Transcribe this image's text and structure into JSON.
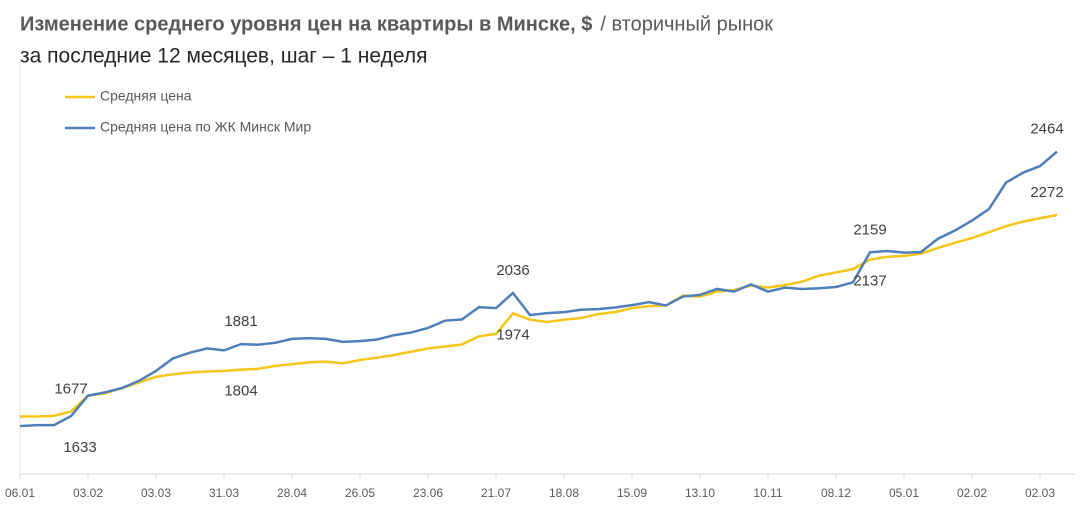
{
  "chart_data": {
    "type": "line",
    "title": "Изменение среднего уровня цен на квартиры в Минске, $",
    "title_suffix": "/ вторичный рынок",
    "subtitle": "за последние 12 месяцев, шаг – 1 неделя",
    "categories": [
      "06.01",
      null,
      null,
      null,
      "03.02",
      null,
      null,
      null,
      "03.03",
      null,
      null,
      null,
      "31.03",
      null,
      null,
      null,
      "28.04",
      null,
      null,
      null,
      "26.05",
      null,
      null,
      null,
      "23.06",
      null,
      null,
      null,
      "21.07",
      null,
      null,
      null,
      "18.08",
      null,
      null,
      null,
      "15.09",
      null,
      null,
      null,
      "13.10",
      null,
      null,
      null,
      "10.11",
      null,
      null,
      null,
      "08.12",
      null,
      null,
      null,
      "05.01",
      null,
      null,
      null,
      "02.02",
      null,
      null,
      null,
      "02.03",
      null
    ],
    "series": [
      {
        "name": "Средняя цена",
        "color": "#f5c518",
        "labels_at": [
          3,
          13,
          29,
          50,
          61
        ],
        "values": [
          1662,
          1662,
          1664,
          1677,
          1725,
          1732,
          1748,
          1765,
          1782,
          1790,
          1795,
          1798,
          1800,
          1804,
          1806,
          1815,
          1820,
          1826,
          1828,
          1823,
          1833,
          1840,
          1848,
          1858,
          1868,
          1874,
          1880,
          1905,
          1912,
          1974,
          1955,
          1948,
          1955,
          1960,
          1972,
          1978,
          1990,
          1996,
          1998,
          2028,
          2025,
          2040,
          2045,
          2058,
          2052,
          2060,
          2070,
          2088,
          2098,
          2108,
          2137,
          2145,
          2148,
          2155,
          2172,
          2188,
          2202,
          2220,
          2238,
          2252,
          2262,
          2272
        ]
      },
      {
        "name": "Средняя цена по ЖК Минск Мир",
        "color": "#4f7fba",
        "labels_at": [
          0,
          13,
          29,
          50,
          61
        ],
        "values": [
          1633,
          1636,
          1636,
          1663,
          1725,
          1735,
          1748,
          1770,
          1800,
          1838,
          1855,
          1868,
          1862,
          1881,
          1879,
          1885,
          1897,
          1899,
          1897,
          1888,
          1890,
          1895,
          1908,
          1916,
          1930,
          1952,
          1956,
          1993,
          1990,
          2036,
          1969,
          1975,
          1978,
          1985,
          1987,
          1992,
          1999,
          2008,
          1998,
          2025,
          2030,
          2048,
          2040,
          2062,
          2040,
          2052,
          2048,
          2050,
          2054,
          2068,
          2159,
          2163,
          2158,
          2160,
          2200,
          2225,
          2255,
          2290,
          2370,
          2400,
          2420,
          2464
        ]
      }
    ],
    "ylim": [
      1500,
      2620
    ]
  }
}
